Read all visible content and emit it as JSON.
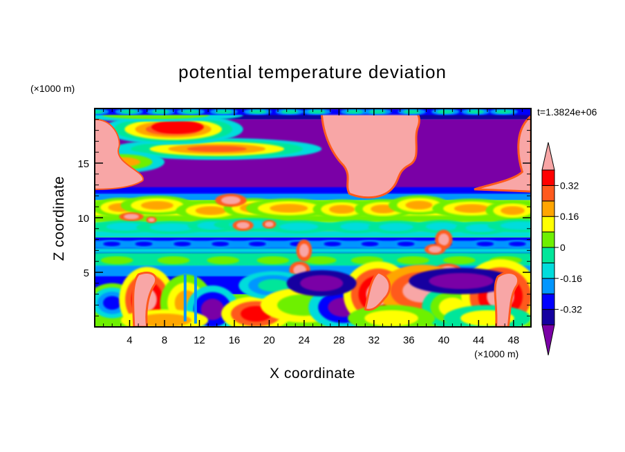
{
  "chart_data": {
    "type": "heatmap",
    "title": "potential temperature deviation",
    "xlabel": "X coordinate",
    "ylabel": "Z coordinate",
    "x_unit": "(×1000 m)",
    "y_unit": "(×1000 m)",
    "time_label": "t=1.3824e+06",
    "xlim": [
      0,
      50
    ],
    "ylim": [
      0,
      20
    ],
    "x_ticks": [
      4,
      8,
      12,
      16,
      20,
      24,
      28,
      32,
      36,
      40,
      44,
      48
    ],
    "y_ticks": [
      5,
      10,
      15
    ],
    "colorbar": {
      "levels": [
        -0.4,
        -0.32,
        -0.24,
        -0.16,
        -0.08,
        0,
        0.08,
        0.16,
        0.24,
        0.32,
        0.4
      ],
      "labeled_levels": [
        0.32,
        0.16,
        0,
        -0.16,
        -0.32
      ],
      "colors": [
        "#7a00a6",
        "#1400a0",
        "#0000ff",
        "#0096ff",
        "#00dcdc",
        "#00e69a",
        "#6ef000",
        "#ffff00",
        "#ffa500",
        "#ff5a1e",
        "#ff0000",
        "#f8a6a6"
      ],
      "under_color": "#7a00a6",
      "over_color": "#f8a6a6"
    },
    "bands": [
      {
        "z": [
          0,
          3
        ],
        "value": "mixed -0.4 to 0.4"
      },
      {
        "z": [
          3,
          5
        ],
        "value": -0.24
      },
      {
        "z": [
          5,
          6.5
        ],
        "value": -0.08
      },
      {
        "z": [
          6.5,
          8
        ],
        "value": -0.32
      },
      {
        "z": [
          8,
          12
        ],
        "value": 0.08
      },
      {
        "z": [
          12,
          19
        ],
        "value": -0.44
      },
      {
        "z": [
          19,
          20
        ],
        "value": -0.32
      }
    ]
  }
}
